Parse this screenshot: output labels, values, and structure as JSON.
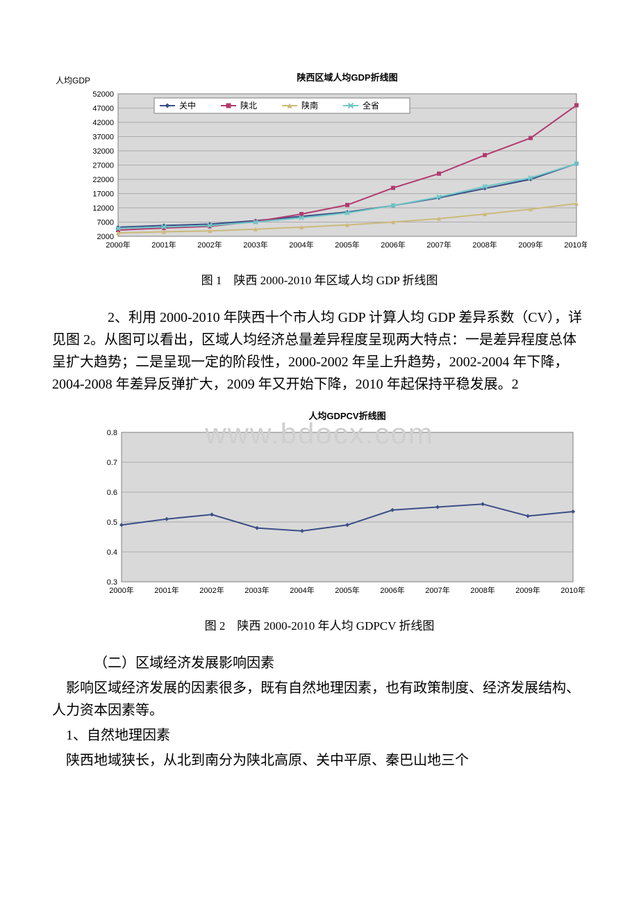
{
  "watermark": "www.bdocx.com",
  "chart1": {
    "type": "line",
    "title": "陕西区域人均GDP折线图",
    "yLabel": "人均GDP",
    "titleFontSize": 13,
    "labelFontSize": 12,
    "tickFontSize": 11,
    "background": "#d9d9d9",
    "plotBackground": "#d9d9d9",
    "gridColor": "#808080",
    "borderColor": "#808080",
    "xCategories": [
      "2000年",
      "2001年",
      "2002年",
      "2003年",
      "2004年",
      "2005年",
      "2006年",
      "2007年",
      "2008年",
      "2009年",
      "2010年"
    ],
    "yTicks": [
      2000,
      7000,
      12000,
      17000,
      22000,
      27000,
      32000,
      37000,
      42000,
      47000,
      52000
    ],
    "series": [
      {
        "name": "关中",
        "color": "#3b4e87",
        "marker": "diamond",
        "values": [
          5200,
          5800,
          6300,
          7500,
          9000,
          10500,
          12800,
          15500,
          18800,
          22000,
          27500
        ]
      },
      {
        "name": "陕北",
        "color": "#b23a6f",
        "marker": "square",
        "values": [
          4200,
          4900,
          5500,
          7200,
          9800,
          13000,
          19000,
          24000,
          30500,
          36500,
          48000
        ]
      },
      {
        "name": "陕南",
        "color": "#cbb97a",
        "marker": "triangle",
        "values": [
          3200,
          3600,
          3900,
          4500,
          5200,
          6000,
          7000,
          8200,
          9800,
          11500,
          13500
        ]
      },
      {
        "name": "全省",
        "color": "#6fc7c7",
        "marker": "x",
        "values": [
          4800,
          5300,
          5800,
          7000,
          8500,
          10200,
          12800,
          15800,
          19500,
          22500,
          27500
        ]
      }
    ],
    "legend": {
      "position": "top-inside",
      "background": "#ffffff",
      "borderColor": "#808080"
    },
    "lineWidth": 2,
    "markerSize": 6
  },
  "caption1_prefix": "图 1　陕西 ",
  "caption1_range": "2000-2010",
  "caption1_suffix": " 年区域人均 GDP 折线图",
  "paragraph1": "　　　　2、利用 2000-2010 年陕西十个市人均 GDP 计算人均 GDP 差异系数（CV），详见图 2。从图可以看出，区域人均经济总量差异程度呈现两大特点：一是差异程度总体呈扩大趋势；二是呈现一定的阶段性，2000-2002 年呈上升趋势，2002-2004 年下降，2004-2008 年差异反弹扩大，2009 年又开始下降，2010 年起保持平稳发展。2",
  "chart2": {
    "type": "line",
    "title": "人均GDPCV折线图",
    "titleFontSize": 13,
    "tickFontSize": 11,
    "background": "#ffffff",
    "plotBackground": "#d9d9d9",
    "gridColor": "#808080",
    "borderColor": "#808080",
    "xCategories": [
      "2000年",
      "2001年",
      "2002年",
      "2003年",
      "2004年",
      "2005年",
      "2006年",
      "2007年",
      "2008年",
      "2009年",
      "2010年"
    ],
    "yTicks": [
      0.3,
      0.4,
      0.5,
      0.6,
      0.7,
      0.8
    ],
    "ylim": [
      0.3,
      0.8
    ],
    "series": [
      {
        "name": "",
        "color": "#3b4e87",
        "marker": "diamond",
        "values": [
          0.49,
          0.51,
          0.525,
          0.48,
          0.47,
          0.49,
          0.54,
          0.55,
          0.56,
          0.52,
          0.535
        ]
      }
    ],
    "lineWidth": 2,
    "markerSize": 6
  },
  "caption2": "图 2　陕西 2000-2010 年人均 GDPCV 折线图",
  "sectionHeading": "（二）区域经济发展影响因素",
  "paragraph2": "影响区域经济发展的因素很多，既有自然地理因素，也有政策制度、经济发展结构、人力资本因素等。",
  "subHeading1": "1、自然地理因素",
  "paragraph3": "陕西地域狭长，从北到南分为陕北高原、关中平原、秦巴山地三个"
}
